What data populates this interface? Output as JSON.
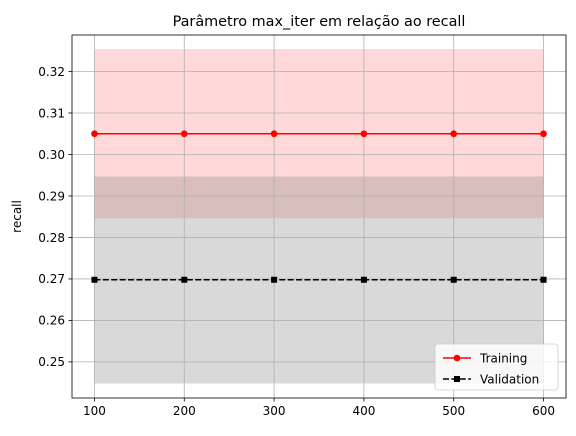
{
  "chart_data": {
    "type": "line",
    "title": "Parâmetro max_iter em relação ao recall",
    "xlabel": "",
    "ylabel": "recall",
    "x": [
      100,
      200,
      300,
      400,
      500,
      600
    ],
    "xlim": [
      75,
      625
    ],
    "ylim": [
      0.2413,
      0.3288
    ],
    "x_ticks": [
      "100",
      "200",
      "300",
      "400",
      "500",
      "600"
    ],
    "y_ticks": [
      "0.25",
      "0.26",
      "0.27",
      "0.28",
      "0.29",
      "0.30",
      "0.31",
      "0.32"
    ],
    "grid": true,
    "legend_position": "lower-right",
    "series": [
      {
        "name": "Training",
        "values": [
          0.305,
          0.305,
          0.305,
          0.305,
          0.305,
          0.305
        ],
        "band_lower": 0.2846,
        "band_upper": 0.3254,
        "color": "#ff0000",
        "band_color": "#ff0000",
        "linestyle": "solid",
        "marker": "circle"
      },
      {
        "name": "Validation",
        "values": [
          0.2698,
          0.2698,
          0.2698,
          0.2698,
          0.2698,
          0.2698
        ],
        "band_lower": 0.2448,
        "band_upper": 0.2947,
        "color": "#000000",
        "band_color": "#808080",
        "linestyle": "dashed",
        "marker": "square"
      }
    ]
  }
}
